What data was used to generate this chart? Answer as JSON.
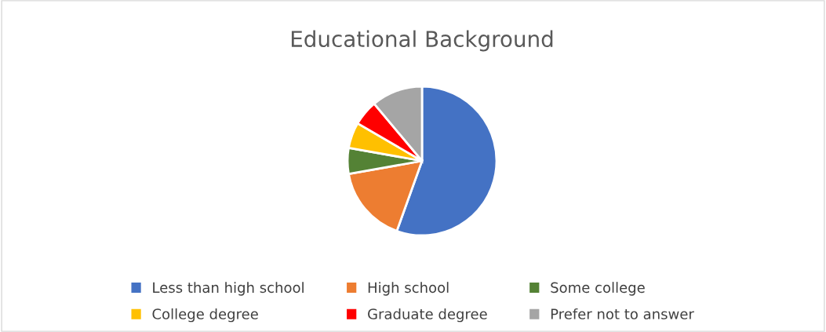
{
  "chart_data": {
    "type": "pie",
    "title": "Educational Background",
    "categories": [
      "Less than high school",
      "High school",
      "Some college",
      "College degree",
      "Graduate degree",
      "Prefer not to answer"
    ],
    "values": [
      55.5,
      16.7,
      5.6,
      5.6,
      5.5,
      11.1
    ],
    "colors": [
      "#4472c4",
      "#ed7d31",
      "#548235",
      "#ffc000",
      "#ff0000",
      "#a5a5a5"
    ],
    "legend": "bottom"
  }
}
